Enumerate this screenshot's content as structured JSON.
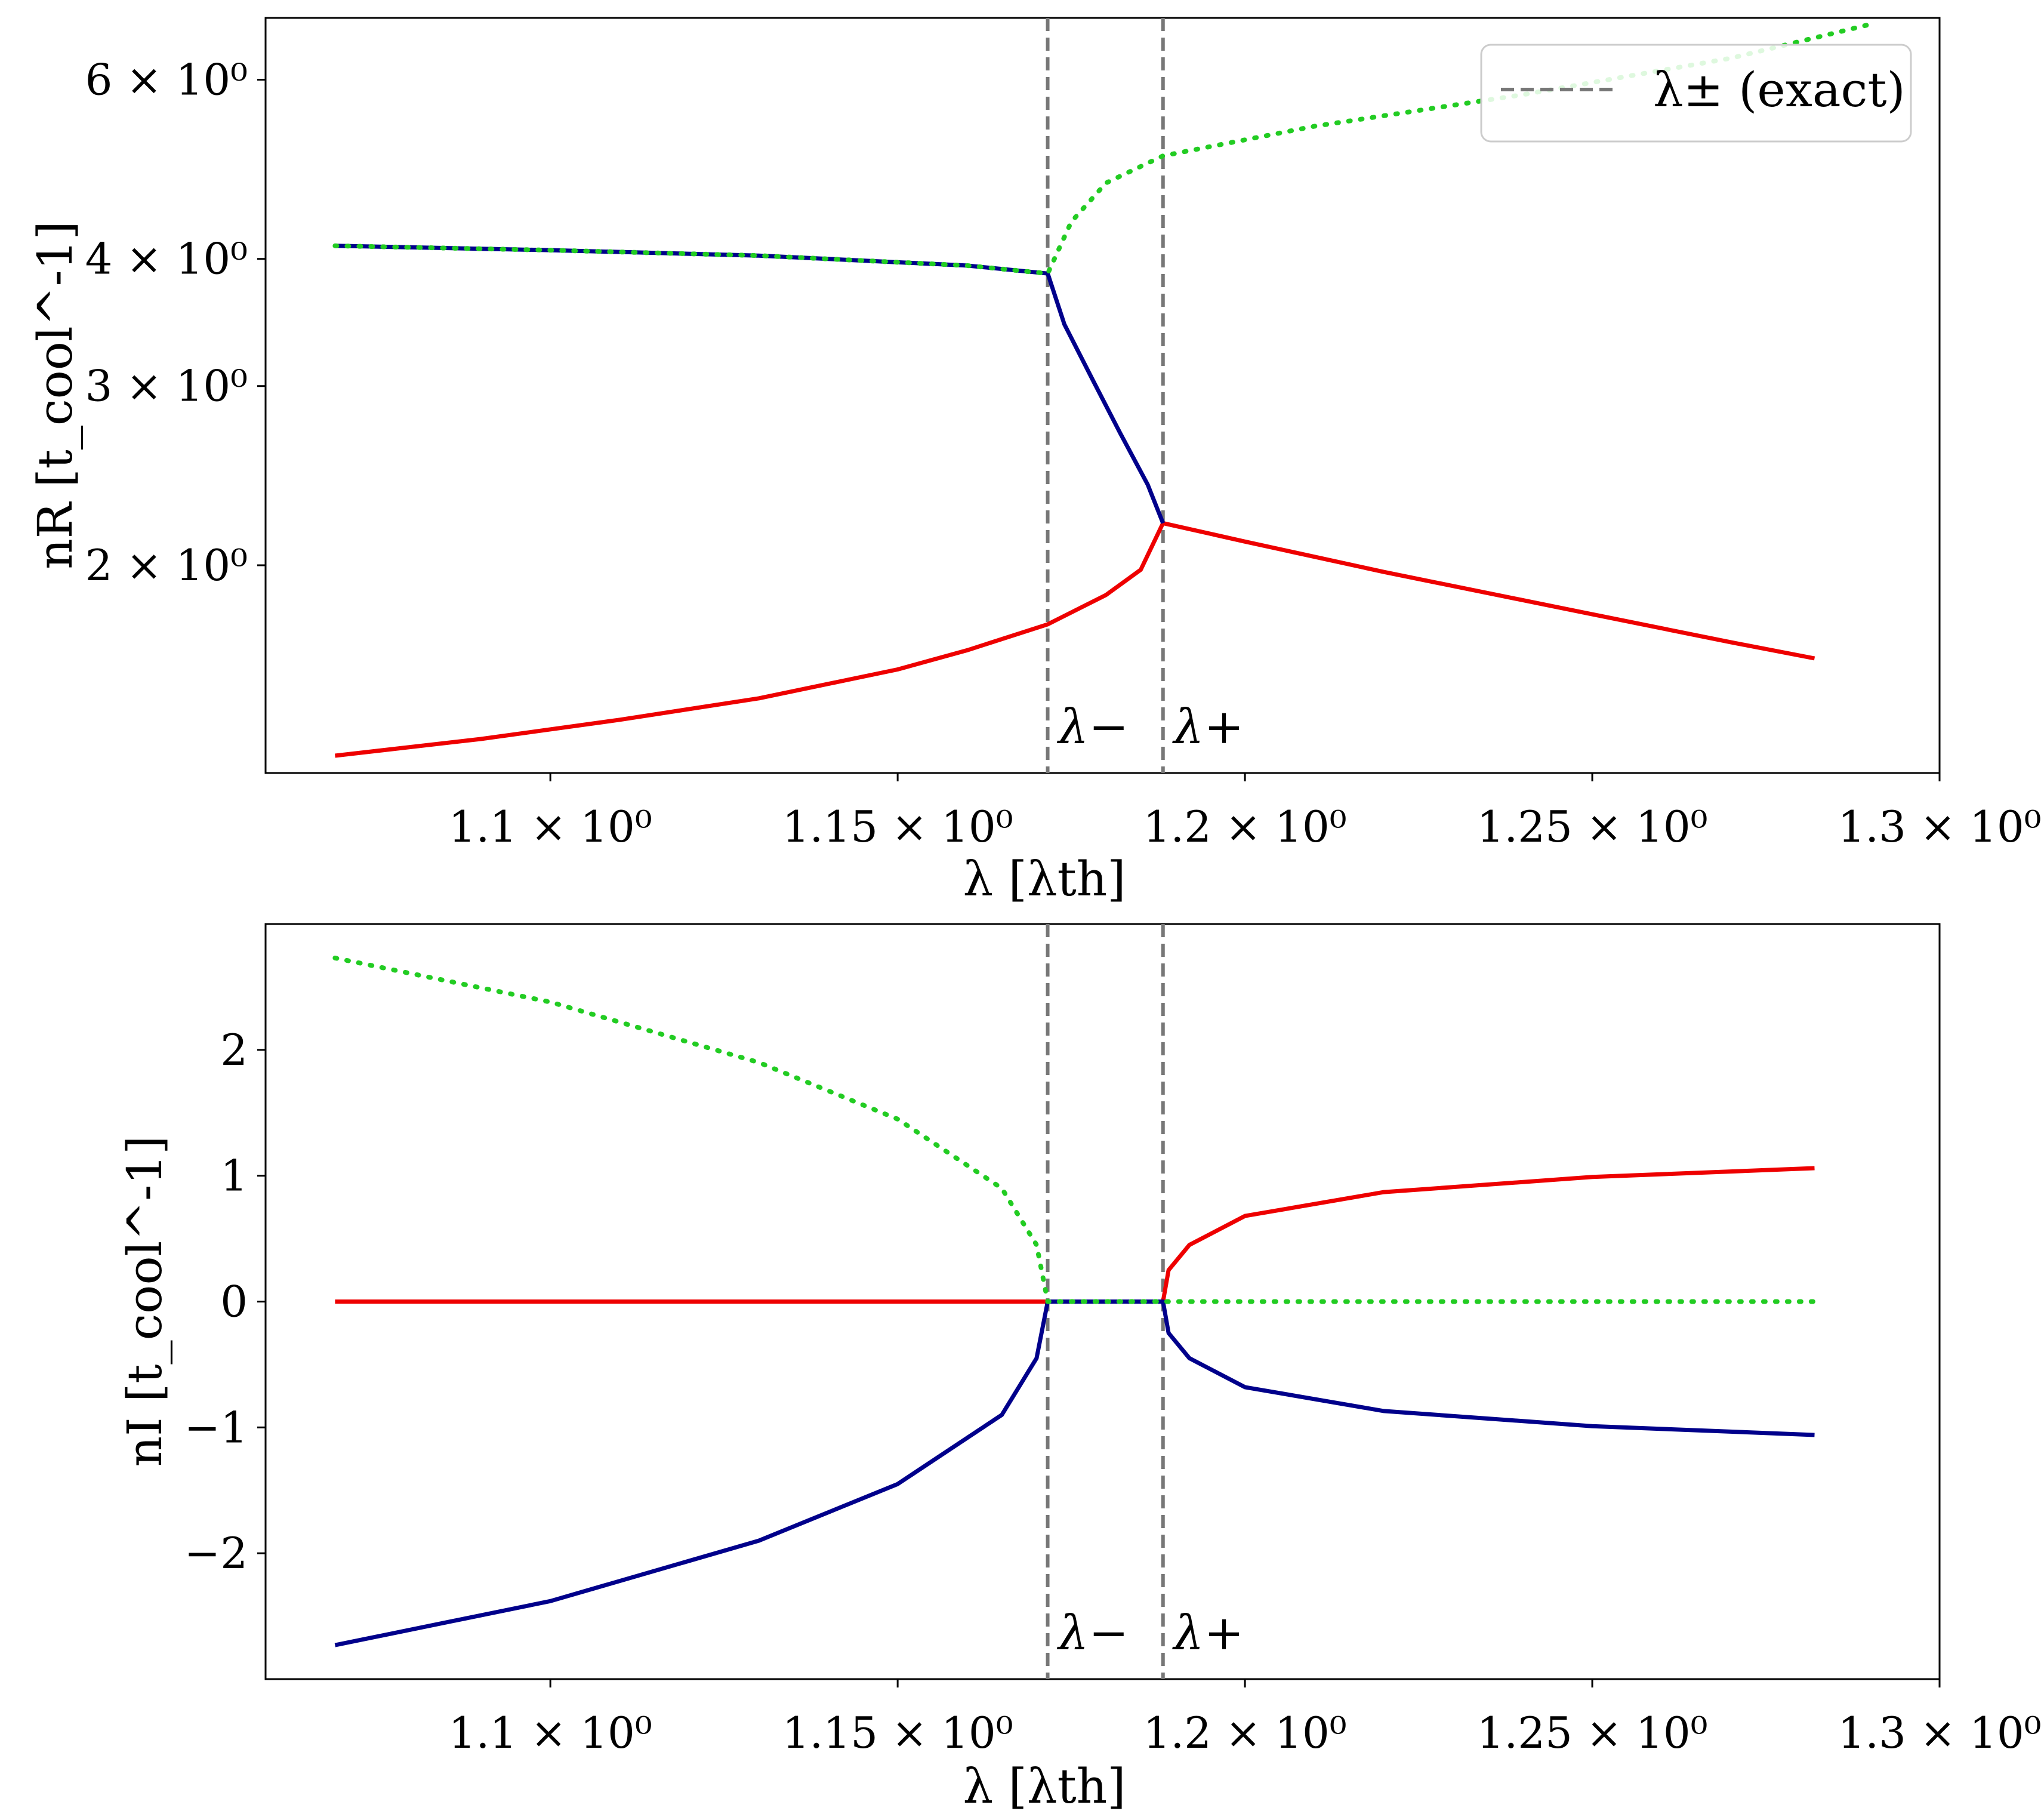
{
  "chart_data": [
    {
      "type": "line",
      "title": "",
      "xlabel": "λ [λth]",
      "ylabel": "nR [t_cool^-1]",
      "yscale": "log",
      "xlim": [
        1.059,
        1.3
      ],
      "ylim": [
        1.25,
        6.9
      ],
      "x_ticks": [
        1.1,
        1.15,
        1.2,
        1.25,
        1.3
      ],
      "x_tick_labels": [
        "1.1 × 10⁰",
        "1.15 × 10⁰",
        "1.2 × 10⁰",
        "1.25 × 10⁰",
        "1.3 × 10⁰"
      ],
      "y_ticks": [
        2,
        3,
        4,
        6
      ],
      "y_tick_labels": [
        "2 × 10⁰",
        "3 × 10⁰",
        "4 × 10⁰",
        "6 × 10⁰"
      ],
      "vlines": [
        1.1716,
        1.1882
      ],
      "vline_labels": [
        "λ−",
        "λ+"
      ],
      "legend": {
        "label": "λ± (exact)",
        "location": "top-right"
      },
      "series": [
        {
          "name": "red",
          "color": "#ee0000",
          "style": "solid",
          "x": [
            1.069,
            1.09,
            1.11,
            1.13,
            1.15,
            1.16,
            1.1716,
            1.18,
            1.185,
            1.1882,
            1.2,
            1.22,
            1.25,
            1.27,
            1.282
          ],
          "values": [
            1.3,
            1.35,
            1.41,
            1.48,
            1.58,
            1.65,
            1.75,
            1.87,
            1.98,
            2.2,
            2.11,
            1.97,
            1.79,
            1.68,
            1.62
          ]
        },
        {
          "name": "navy",
          "color": "#00008b",
          "style": "solid",
          "x": [
            1.069,
            1.1,
            1.13,
            1.16,
            1.1716,
            1.174,
            1.178,
            1.182,
            1.186,
            1.1882
          ],
          "values": [
            4.12,
            4.08,
            4.03,
            3.94,
            3.87,
            3.45,
            3.05,
            2.7,
            2.4,
            2.2
          ]
        },
        {
          "name": "green",
          "color": "#22cc22",
          "style": "dotted",
          "x": [
            1.069,
            1.1,
            1.13,
            1.16,
            1.1716,
            1.175,
            1.18,
            1.1882,
            1.21,
            1.24,
            1.27,
            1.29
          ],
          "values": [
            4.12,
            4.08,
            4.03,
            3.94,
            3.87,
            4.35,
            4.75,
            5.05,
            5.4,
            5.8,
            6.3,
            6.8
          ]
        }
      ]
    },
    {
      "type": "line",
      "title": "",
      "xlabel": "λ [λth]",
      "ylabel": "nI [t_cool^-1]",
      "yscale": "linear",
      "xlim": [
        1.059,
        1.3
      ],
      "ylim": [
        -3.0,
        3.0
      ],
      "x_ticks": [
        1.1,
        1.15,
        1.2,
        1.25,
        1.3
      ],
      "x_tick_labels": [
        "1.1 × 10⁰",
        "1.15 × 10⁰",
        "1.2 × 10⁰",
        "1.25 × 10⁰",
        "1.3 × 10⁰"
      ],
      "y_ticks": [
        -2,
        -1,
        0,
        1,
        2
      ],
      "y_tick_labels": [
        "−2",
        "−1",
        "0",
        "1",
        "2"
      ],
      "vlines": [
        1.1716,
        1.1882
      ],
      "vline_labels": [
        "λ−",
        "λ+"
      ],
      "series": [
        {
          "name": "red",
          "color": "#ee0000",
          "style": "solid",
          "x": [
            1.069,
            1.1716,
            1.1882,
            1.189,
            1.192,
            1.2,
            1.22,
            1.25,
            1.282
          ],
          "values": [
            0,
            0,
            0,
            0.25,
            0.45,
            0.68,
            0.87,
            0.99,
            1.06
          ]
        },
        {
          "name": "navy",
          "color": "#00008b",
          "style": "solid",
          "x": [
            1.069,
            1.1,
            1.13,
            1.15,
            1.165,
            1.17,
            1.1716,
            1.1882,
            1.189,
            1.192,
            1.2,
            1.22,
            1.25,
            1.282
          ],
          "values": [
            -2.73,
            -2.38,
            -1.9,
            -1.45,
            -0.9,
            -0.45,
            0,
            0,
            -0.25,
            -0.45,
            -0.68,
            -0.87,
            -0.99,
            -1.06
          ]
        },
        {
          "name": "green",
          "color": "#22cc22",
          "style": "dotted",
          "x": [
            1.069,
            1.1,
            1.13,
            1.15,
            1.165,
            1.17,
            1.1716,
            1.1882,
            1.282
          ],
          "values": [
            2.73,
            2.38,
            1.9,
            1.45,
            0.9,
            0.45,
            0,
            0,
            0
          ]
        }
      ]
    }
  ]
}
